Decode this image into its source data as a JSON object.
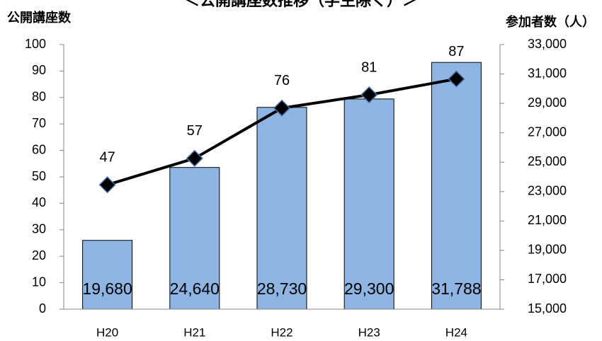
{
  "chart_data": {
    "type": "bar_line",
    "title": "＜公開講座数推移（学生除く）＞",
    "y_label": "公開講座数",
    "y2_label": "参加者数（人）",
    "categories": [
      "H20",
      "H21",
      "H22",
      "H23",
      "H24"
    ],
    "series": [
      {
        "type": "bar",
        "axis": "y2",
        "color": "#8eb4e3",
        "values": [
          19680,
          24640,
          28730,
          29300,
          31788
        ],
        "value_labels": [
          "19,680",
          "24,640",
          "28,730",
          "29,300",
          "31,788"
        ]
      },
      {
        "type": "line",
        "axis": "y",
        "color": "#000000",
        "values": [
          47,
          57,
          76,
          81,
          87
        ]
      }
    ],
    "ylim": [
      0,
      100
    ],
    "yticks": [
      0,
      10,
      20,
      30,
      40,
      50,
      60,
      70,
      80,
      90,
      100
    ],
    "y2lim": [
      15000,
      33000
    ],
    "y2ticks": [
      {
        "value": 15000,
        "label": "15,000"
      },
      {
        "value": 17000,
        "label": "17,000"
      },
      {
        "value": 19000,
        "label": "19,000"
      },
      {
        "value": 21000,
        "label": "21,000"
      },
      {
        "value": 23000,
        "label": "23,000"
      },
      {
        "value": 25000,
        "label": "25,000"
      },
      {
        "value": 27000,
        "label": "27,000"
      },
      {
        "value": 29000,
        "label": "29,000"
      },
      {
        "value": 31000,
        "label": "31,000"
      },
      {
        "value": 33000,
        "label": "33,000"
      }
    ],
    "grid": false
  }
}
